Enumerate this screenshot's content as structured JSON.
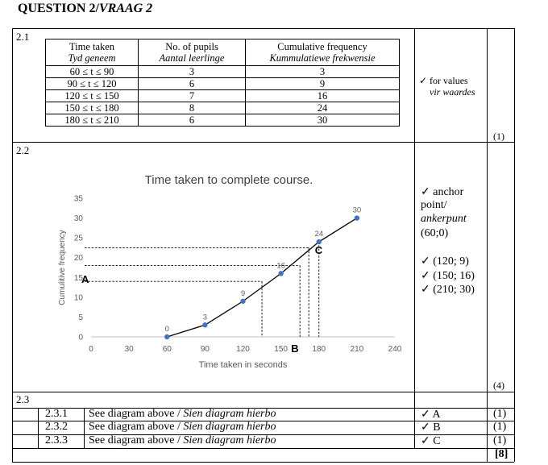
{
  "question": {
    "title": "QUESTION 2/",
    "title_af": "VRAAG 2"
  },
  "q21": {
    "number": "2.1",
    "headers": [
      {
        "en": "Time taken",
        "af": "Tyd geneem"
      },
      {
        "en": "No. of pupils",
        "af": "Aantal leerlinge"
      },
      {
        "en": "Cumulative frequency",
        "af": "Kummulatiewe frekwensie"
      }
    ],
    "rows": [
      {
        "interval": "60 ≤ t ≤ 90",
        "pupils": "3",
        "cf": "3"
      },
      {
        "interval": "90 ≤ t ≤ 120",
        "pupils": "6",
        "cf": "9"
      },
      {
        "interval": "120 ≤ t ≤ 150",
        "pupils": "7",
        "cf": "16"
      },
      {
        "interval": "150 ≤ t ≤ 180",
        "pupils": "8",
        "cf": "24"
      },
      {
        "interval": "180 ≤ t ≤ 210",
        "pupils": "6",
        "cf": "30"
      }
    ],
    "memo_line1": "✓ for values",
    "memo_line2": "vir waardes",
    "mark": "(1)"
  },
  "q22": {
    "number": "2.2",
    "memo": {
      "l1": "✓ anchor",
      "l2": "point/",
      "l3": "ankerpunt",
      "l4": "(60;0)",
      "l5": "✓ (120; 9)",
      "l6": "✓ (150; 16)",
      "l7": "✓ (210; 30)"
    },
    "mark": "(4)"
  },
  "chart_data": {
    "type": "line",
    "title": "Time taken to complete course.",
    "xlabel": "Time taken in seconds",
    "ylabel": "Cumulitive frequency",
    "xlim": [
      0,
      240
    ],
    "ylim": [
      0,
      35
    ],
    "xticks": [
      0,
      30,
      60,
      90,
      120,
      150,
      180,
      210,
      240
    ],
    "yticks": [
      0,
      5,
      10,
      15,
      20,
      25,
      30,
      35
    ],
    "xtick_labels": [
      "0",
      "30",
      "60",
      "90",
      "120",
      "150",
      "180",
      "210",
      "240"
    ],
    "ytick_labels": [
      "0",
      "5",
      "10",
      "15",
      "20",
      "25",
      "30",
      "35"
    ],
    "grid": false,
    "x": [
      60,
      90,
      120,
      150,
      180,
      210
    ],
    "y": [
      0,
      3,
      9,
      16,
      24,
      30
    ],
    "point_labels": [
      "0",
      "3",
      "9",
      "16",
      "24",
      "30"
    ],
    "annotations": {
      "A": "A",
      "B": "B",
      "C": "C"
    },
    "guide_values": {
      "A_cf": 14,
      "q1_time": 135,
      "B_time": 165,
      "median_cf": 18,
      "q3_time": 172,
      "q3_cf": 22.5,
      "C_time": 180
    }
  },
  "q23": {
    "number": "2.3",
    "items": [
      {
        "num": "2.3.1",
        "text": "See diagram above / ",
        "text_af": "Sien diagram hierbo",
        "memo": "✓ A",
        "mark": "(1)"
      },
      {
        "num": "2.3.2",
        "text": "See diagram above / ",
        "text_af": "Sien diagram hierbo",
        "memo": "✓ B",
        "mark": "(1)"
      },
      {
        "num": "2.3.3",
        "text": "See diagram above / ",
        "text_af": "Sien diagram hierbo",
        "memo": "✓ C",
        "mark": "(1)"
      }
    ],
    "total": "[8]"
  }
}
